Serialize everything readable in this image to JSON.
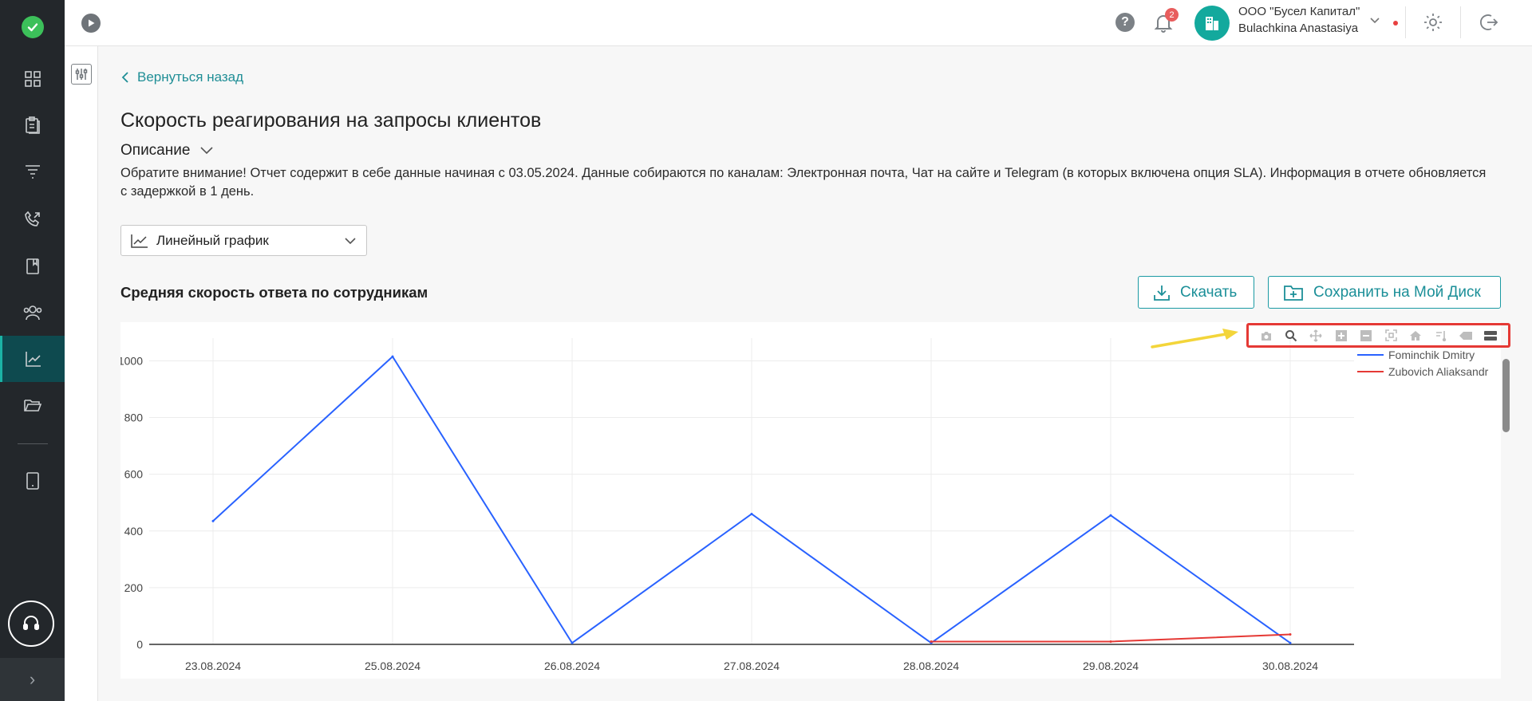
{
  "header": {
    "company": "ООО \"Бусел Капитал\"",
    "user": "Bulachkina Anastasiya",
    "notifications_count": "2"
  },
  "sidebar": {
    "items": [
      {
        "icon": "dashboard-icon"
      },
      {
        "icon": "clipboard-icon"
      },
      {
        "icon": "funnel-icon"
      },
      {
        "icon": "phone-icon"
      },
      {
        "icon": "book-icon"
      },
      {
        "icon": "users-icon"
      },
      {
        "icon": "analytics-icon",
        "active": true
      },
      {
        "icon": "folder-icon"
      },
      {
        "icon": "tablet-icon"
      }
    ]
  },
  "main": {
    "back_label": "Вернуться назад",
    "title": "Скорость реагирования на запросы клиентов",
    "description_toggle": "Описание",
    "description_text": "Обратите внимание! Отчет содержит в себе данные начиная с 03.05.2024. Данные собираются по каналам: Электронная почта, Чат на сайте и Telegram (в которых включена опция SLA). Информация в отчете обновляется с задержкой в 1 день.",
    "chart_type_selected": "Линейный график",
    "section_title": "Средняя скорость ответа по сотрудникам",
    "download_label": "Скачать",
    "save_label": "Сохранить на Мой Диск"
  },
  "colors": {
    "accent": "#1b9aa3",
    "series_blue": "#2962ff",
    "series_red": "#e53935",
    "sidebar_bg": "#23272b"
  },
  "chart_data": {
    "type": "line",
    "categories": [
      "23.08.2024",
      "25.08.2024",
      "26.08.2024",
      "27.08.2024",
      "28.08.2024",
      "29.08.2024",
      "30.08.2024"
    ],
    "y_ticks": [
      "0",
      "200",
      "400",
      "600",
      "800",
      "1000"
    ],
    "ylim": [
      0,
      1080
    ],
    "grid": true,
    "legend_position": "top-right",
    "series": [
      {
        "name": "Fominchik Dmitry",
        "color": "#2962ff",
        "values": [
          435,
          1015,
          5,
          460,
          5,
          455,
          5
        ]
      },
      {
        "name": "Zubovich Aliaksandr",
        "color": "#e53935",
        "values": [
          null,
          null,
          null,
          null,
          10,
          10,
          35
        ]
      }
    ]
  }
}
